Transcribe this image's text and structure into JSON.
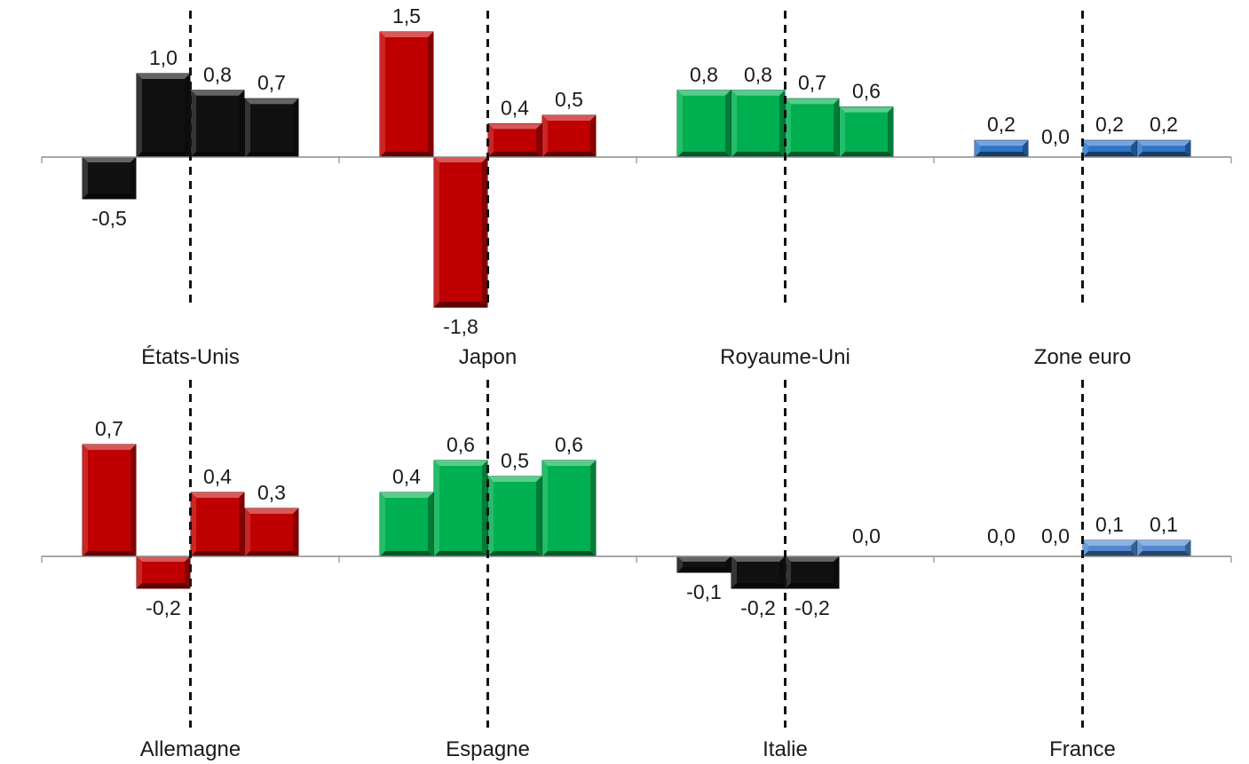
{
  "chart_data": {
    "type": "bar",
    "ylim": [
      -1.9,
      1.6
    ],
    "bar_style": "bevelled",
    "grid": false,
    "legend": "none",
    "charts": [
      {
        "title": "États-Unis",
        "values": [
          -0.5,
          1.0,
          0.8,
          0.7
        ],
        "labels": [
          "-0,5",
          "1,0",
          "0,8",
          "0,7"
        ],
        "color": "#111111"
      },
      {
        "title": "Japon",
        "values": [
          1.5,
          -1.8,
          0.4,
          0.5
        ],
        "labels": [
          "1,5",
          "-1,8",
          "0,4",
          "0,5"
        ],
        "color": "#c00000"
      },
      {
        "title": "Royaume-Uni",
        "values": [
          0.8,
          0.8,
          0.7,
          0.6
        ],
        "labels": [
          "0,8",
          "0,8",
          "0,7",
          "0,6"
        ],
        "color": "#00b050"
      },
      {
        "title": "Zone euro",
        "values": [
          0.2,
          0.0,
          0.2,
          0.2
        ],
        "labels": [
          "0,2",
          "0,0",
          "0,2",
          "0,2"
        ],
        "color": "#2e75c8"
      },
      {
        "title": "Allemagne",
        "values": [
          0.7,
          -0.2,
          0.4,
          0.3
        ],
        "labels": [
          "0,7",
          "-0,2",
          "0,4",
          "0,3"
        ],
        "color": "#c00000"
      },
      {
        "title": "Espagne",
        "values": [
          0.4,
          0.6,
          0.5,
          0.6
        ],
        "labels": [
          "0,4",
          "0,6",
          "0,5",
          "0,6"
        ],
        "color": "#00b050"
      },
      {
        "title": "Italie",
        "values": [
          -0.1,
          -0.2,
          -0.2,
          0.0
        ],
        "labels": [
          "-0,1",
          "-0,2",
          "-0,2",
          "0,0"
        ],
        "color": "#111111"
      },
      {
        "title": "France",
        "values": [
          0.0,
          0.0,
          0.1,
          0.1
        ],
        "labels": [
          "0,0",
          "0,0",
          "0,1",
          "0,1"
        ],
        "color": "#4f88d0"
      }
    ]
  }
}
